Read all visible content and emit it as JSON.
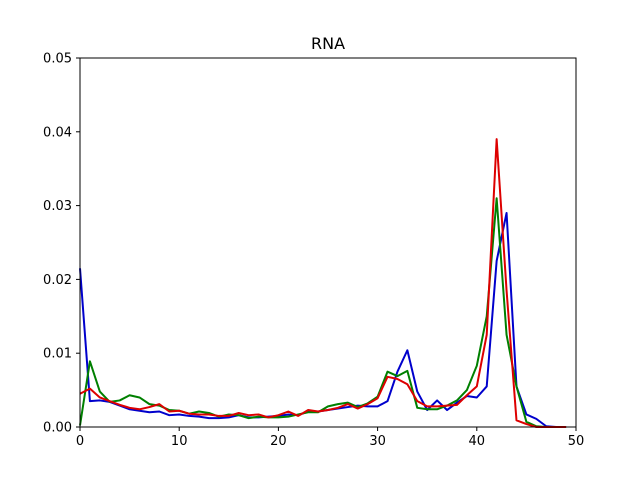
{
  "chart_data": {
    "type": "line",
    "title": "RNA",
    "xlabel": "",
    "ylabel": "",
    "xlim": [
      0,
      50
    ],
    "ylim": [
      0,
      0.05
    ],
    "xticks": [
      0,
      10,
      20,
      30,
      40,
      50
    ],
    "yticks": [
      0.0,
      0.01,
      0.02,
      0.03,
      0.04,
      0.05
    ],
    "xtick_labels": [
      "0",
      "10",
      "20",
      "30",
      "40",
      "50"
    ],
    "ytick_labels": [
      "0.00",
      "0.01",
      "0.02",
      "0.03",
      "0.04",
      "0.05"
    ],
    "grid": false,
    "legend": "none",
    "series": [
      {
        "color": "#0000cc",
        "x": [
          0,
          1,
          2,
          3,
          4,
          5,
          6,
          7,
          8,
          9,
          10,
          11,
          12,
          13,
          14,
          15,
          16,
          17,
          18,
          19,
          20,
          21,
          22,
          23,
          24,
          25,
          26,
          27,
          28,
          29,
          30,
          31,
          32,
          33,
          34,
          35,
          36,
          37,
          38,
          39,
          40,
          41,
          42,
          43,
          44,
          45,
          46,
          47,
          48,
          49
        ],
        "y": [
          0.0215,
          0.0035,
          0.0036,
          0.0034,
          0.0029,
          0.0024,
          0.0022,
          0.002,
          0.0021,
          0.0016,
          0.0017,
          0.0015,
          0.0014,
          0.0012,
          0.0012,
          0.0013,
          0.0016,
          0.0013,
          0.0013,
          0.0014,
          0.0015,
          0.0017,
          0.0016,
          0.0021,
          0.0021,
          0.0023,
          0.0025,
          0.0027,
          0.0029,
          0.0028,
          0.0028,
          0.0035,
          0.0075,
          0.0104,
          0.0048,
          0.0023,
          0.0036,
          0.0023,
          0.0033,
          0.0042,
          0.004,
          0.0055,
          0.0225,
          0.029,
          0.0055,
          0.0017,
          0.0011,
          0.0001,
          0.0,
          0.0
        ]
      },
      {
        "color": "#008000",
        "x": [
          0,
          1,
          2,
          3,
          4,
          5,
          6,
          7,
          8,
          9,
          10,
          11,
          12,
          13,
          14,
          15,
          16,
          17,
          18,
          19,
          20,
          21,
          22,
          23,
          24,
          25,
          26,
          27,
          28,
          29,
          30,
          31,
          32,
          33,
          34,
          35,
          36,
          37,
          38,
          39,
          40,
          41,
          42,
          43,
          44,
          45,
          46,
          47,
          48,
          49
        ],
        "y": [
          0.0002,
          0.0089,
          0.0048,
          0.0034,
          0.0036,
          0.0043,
          0.004,
          0.0031,
          0.0029,
          0.0023,
          0.0022,
          0.0018,
          0.0021,
          0.0019,
          0.0014,
          0.0017,
          0.0016,
          0.0012,
          0.0014,
          0.0013,
          0.0013,
          0.0014,
          0.0017,
          0.002,
          0.002,
          0.0028,
          0.0031,
          0.0033,
          0.0027,
          0.0032,
          0.0041,
          0.0075,
          0.0069,
          0.0076,
          0.0026,
          0.0024,
          0.0024,
          0.0029,
          0.0036,
          0.005,
          0.0083,
          0.015,
          0.031,
          0.0125,
          0.0055,
          0.0007,
          0.0001,
          0.0,
          0.0,
          0.0
        ]
      },
      {
        "color": "#dd0000",
        "x": [
          0,
          1,
          2,
          3,
          4,
          5,
          6,
          7,
          8,
          9,
          10,
          11,
          12,
          13,
          14,
          15,
          16,
          17,
          18,
          19,
          20,
          21,
          22,
          23,
          24,
          25,
          26,
          27,
          28,
          29,
          30,
          31,
          32,
          33,
          34,
          35,
          36,
          37,
          38,
          39,
          40,
          41,
          42,
          43,
          44,
          45,
          46,
          47,
          48,
          49
        ],
        "y": [
          0.0045,
          0.0052,
          0.004,
          0.0035,
          0.003,
          0.0026,
          0.0024,
          0.0027,
          0.0031,
          0.0021,
          0.0022,
          0.0018,
          0.0017,
          0.0017,
          0.0015,
          0.0015,
          0.0019,
          0.0016,
          0.0017,
          0.0013,
          0.0016,
          0.0021,
          0.0015,
          0.0023,
          0.0021,
          0.0023,
          0.0026,
          0.0031,
          0.0025,
          0.0031,
          0.0039,
          0.0068,
          0.0065,
          0.0058,
          0.0035,
          0.0028,
          0.0028,
          0.0029,
          0.003,
          0.0043,
          0.0055,
          0.0125,
          0.039,
          0.0185,
          0.0009,
          0.0004,
          0.0,
          0.0,
          0.0,
          0.0
        ]
      }
    ]
  }
}
